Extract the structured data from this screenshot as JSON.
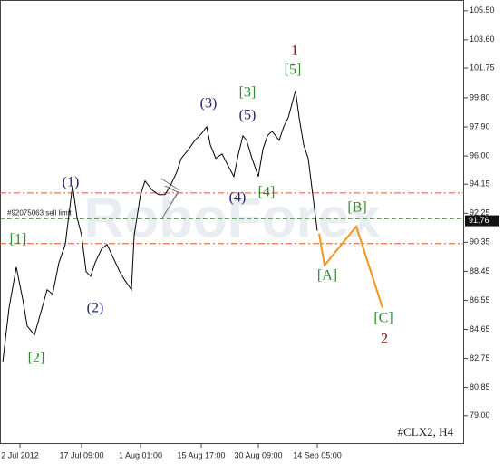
{
  "chart_data": {
    "type": "line",
    "symbol": "#CLX2, H4",
    "watermark": "RoboForex",
    "order_label": "#92075063 sell limit",
    "last_price": 91.76,
    "series": [
      {
        "color": "#000000",
        "x": [
          0.75,
          2.5,
          4.5,
          6.25,
          7.5,
          9.5,
          11.25,
          13,
          14.5,
          16.25,
          18,
          20,
          21.25,
          22.5,
          23.75,
          25,
          26.25,
          28,
          29.5,
          31.25,
          33,
          34.5,
          36.25,
          37,
          38.75,
          40,
          42,
          43.75,
          45.5,
          47,
          48.75,
          50,
          52,
          53.75,
          55.5,
          57,
          58,
          59.5,
          61.25,
          62.5,
          64.5,
          65.75,
          67,
          68,
          69.5,
          71.25,
          72.5,
          73.75,
          75,
          77,
          78.25,
          79.5,
          80.5,
          81.5,
          82.5,
          83.75,
          85,
          86.25,
          87.5
        ],
        "values": [
          82.5,
          86.06,
          88.72,
          86.65,
          84.87,
          84.28,
          85.76,
          87.24,
          86.95,
          89.02,
          90.21,
          94.06,
          91.98,
          90.8,
          88.43,
          88.13,
          89.02,
          89.91,
          90.21,
          89.32,
          88.43,
          87.84,
          87.24,
          90.8,
          93.47,
          94.36,
          93.76,
          93.47,
          93.47,
          94.06,
          94.95,
          95.84,
          96.43,
          97.02,
          97.44,
          97.91,
          96.73,
          95.84,
          96.13,
          95.54,
          94.65,
          96.13,
          97.32,
          97.02,
          95.84,
          94.65,
          96.43,
          97.32,
          97.62,
          97.02,
          97.91,
          98.51,
          99.39,
          100.28,
          98.51,
          96.73,
          95.84,
          93.47,
          91.1
        ]
      },
      {
        "color": "#f0961e",
        "x": [
          88,
          89.5,
          98.25,
          105.5
        ],
        "values": [
          90.92,
          88.84,
          91.39,
          86.06
        ]
      }
    ],
    "levels": [
      {
        "value": 93.58,
        "color": "#d9572c"
      },
      {
        "value": 91.9,
        "color": "#2e8b2e"
      },
      {
        "value": 90.27,
        "color": "#d9572c"
      }
    ],
    "waves": [
      {
        "text": "1",
        "color": "#7a0c0c"
      },
      {
        "text": "[5]",
        "color": "#2e8b2e"
      },
      {
        "text": "[3]",
        "color": "#2e8b2e"
      },
      {
        "text": "(3)",
        "color": "#23236e"
      },
      {
        "text": "(5)",
        "color": "#23236e"
      },
      {
        "text": "(1)",
        "color": "#23236e"
      },
      {
        "text": "(4)",
        "color": "#23236e"
      },
      {
        "text": "[4]",
        "color": "#2e8b2e"
      },
      {
        "text": "[B]",
        "color": "#2e8b2e"
      },
      {
        "text": "[1]",
        "color": "#2e8b2e"
      },
      {
        "text": "[A]",
        "color": "#2e8b2e"
      },
      {
        "text": "(2)",
        "color": "#23236e"
      },
      {
        "text": "[C]",
        "color": "#2e8b2e"
      },
      {
        "text": "2",
        "color": "#7a0c0c"
      },
      {
        "text": "[2]",
        "color": "#2e8b2e"
      }
    ],
    "xlim": [
      0,
      128
    ],
    "xticks": [
      {
        "value": 5.5,
        "label": "2 Jul 2012"
      },
      {
        "value": 22.5,
        "label": "17 Jul 09:00"
      },
      {
        "value": 38.75,
        "label": "1 Aug 01:00"
      },
      {
        "value": 55.5,
        "label": "15 Aug 17:00"
      },
      {
        "value": 71.25,
        "label": "30 Aug 09:00"
      },
      {
        "value": 87.5,
        "label": "14 Sep 05:00"
      }
    ],
    "ylim": [
      77.15,
      106.2
    ],
    "yticks": [
      {
        "value": 105.5,
        "label": "105.50"
      },
      {
        "value": 103.6,
        "label": "103.60"
      },
      101.75,
      {
        "value": 99.8,
        "label": "99.80"
      },
      {
        "value": 97.9,
        "label": "97.90"
      },
      {
        "value": 96,
        "label": "96.00"
      },
      94.15,
      92.25,
      90.35,
      88.45,
      86.55,
      84.65,
      82.75,
      80.85,
      {
        "value": 79,
        "label": "79.00"
      }
    ]
  }
}
